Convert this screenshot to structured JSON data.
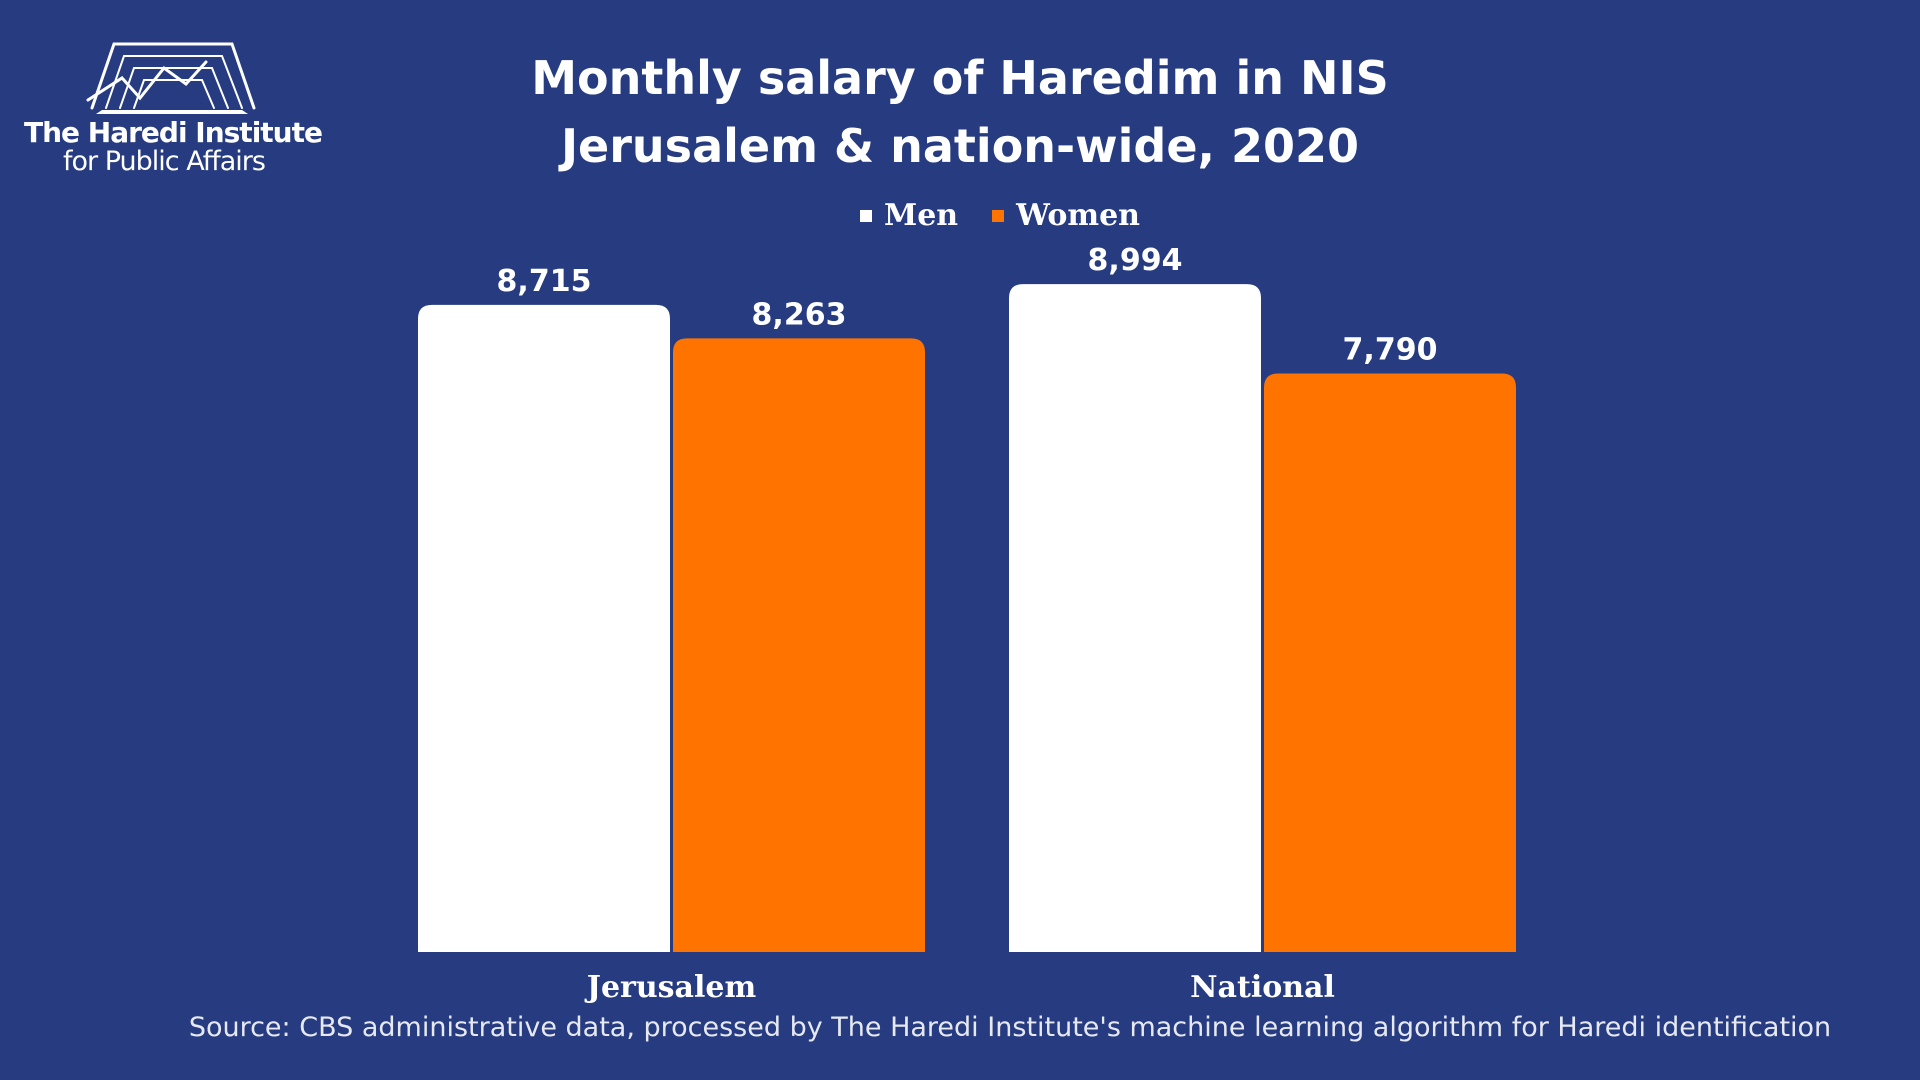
{
  "logo": {
    "line1": "The Haredi Institute",
    "line2": "for Public Affairs"
  },
  "title_line1": "Monthly salary of Haredim in NIS",
  "title_line2": "Jerusalem & nation-wide, 2020",
  "source": "Source: CBS administrative data, processed by The Haredi Institute's machine learning algorithm for Haredi identification",
  "colors": {
    "background": "#263b80",
    "men": "#ffffff",
    "women": "#ff7300"
  },
  "chart_data": {
    "type": "bar",
    "title": "Monthly salary of Haredim in NIS Jerusalem & nation-wide, 2020",
    "categories": [
      "Jerusalem",
      "National"
    ],
    "series": [
      {
        "name": "Men",
        "values": [
          8715,
          8994
        ],
        "labels": [
          "8,715",
          "8,994"
        ]
      },
      {
        "name": "Women",
        "values": [
          8263,
          7790
        ],
        "labels": [
          "8,263",
          "7,790"
        ]
      }
    ],
    "ylim": [
      0,
      9400
    ],
    "grid": false,
    "legend": "top-center"
  }
}
